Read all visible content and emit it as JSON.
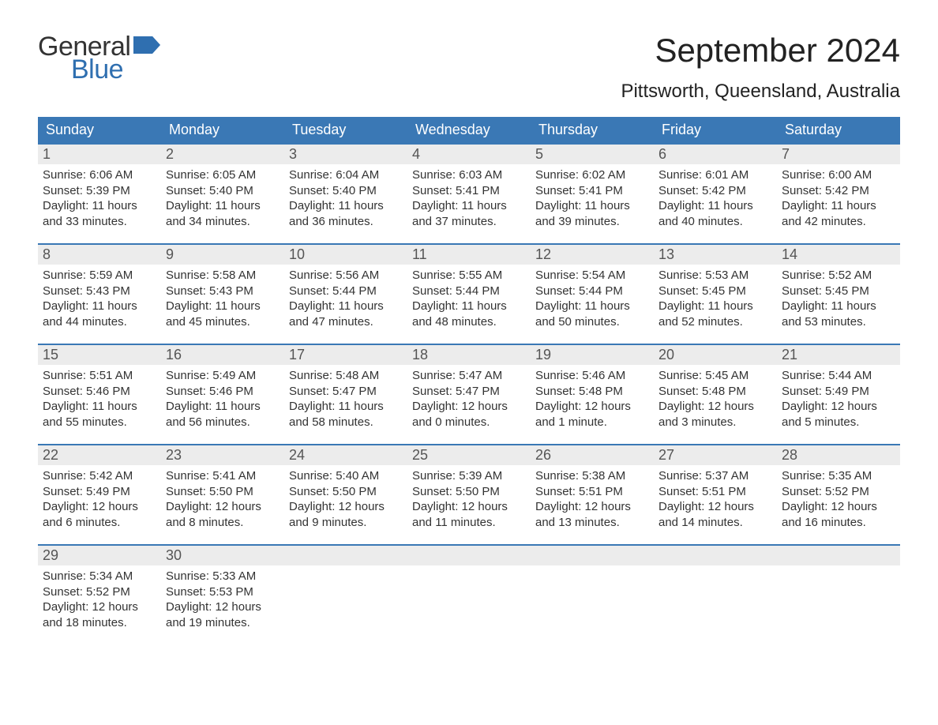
{
  "brand": {
    "word1": "General",
    "word2": "Blue",
    "flag_color": "#2f6fb0",
    "text_color_dark": "#333333",
    "text_color_blue": "#2f6fb0"
  },
  "title": "September 2024",
  "location": "Pittsworth, Queensland, Australia",
  "colors": {
    "header_bg": "#3a78b5",
    "header_text": "#ffffff",
    "week_border": "#3a78b5",
    "daynum_bg": "#ececec",
    "daynum_text": "#555555",
    "body_text": "#333333",
    "page_bg": "#ffffff"
  },
  "typography": {
    "title_fontsize": 42,
    "location_fontsize": 24,
    "dow_fontsize": 18,
    "daynum_fontsize": 18,
    "body_fontsize": 15
  },
  "days_of_week": [
    "Sunday",
    "Monday",
    "Tuesday",
    "Wednesday",
    "Thursday",
    "Friday",
    "Saturday"
  ],
  "weeks": [
    [
      {
        "num": "1",
        "sunrise": "Sunrise: 6:06 AM",
        "sunset": "Sunset: 5:39 PM",
        "daylight": "Daylight: 11 hours and 33 minutes."
      },
      {
        "num": "2",
        "sunrise": "Sunrise: 6:05 AM",
        "sunset": "Sunset: 5:40 PM",
        "daylight": "Daylight: 11 hours and 34 minutes."
      },
      {
        "num": "3",
        "sunrise": "Sunrise: 6:04 AM",
        "sunset": "Sunset: 5:40 PM",
        "daylight": "Daylight: 11 hours and 36 minutes."
      },
      {
        "num": "4",
        "sunrise": "Sunrise: 6:03 AM",
        "sunset": "Sunset: 5:41 PM",
        "daylight": "Daylight: 11 hours and 37 minutes."
      },
      {
        "num": "5",
        "sunrise": "Sunrise: 6:02 AM",
        "sunset": "Sunset: 5:41 PM",
        "daylight": "Daylight: 11 hours and 39 minutes."
      },
      {
        "num": "6",
        "sunrise": "Sunrise: 6:01 AM",
        "sunset": "Sunset: 5:42 PM",
        "daylight": "Daylight: 11 hours and 40 minutes."
      },
      {
        "num": "7",
        "sunrise": "Sunrise: 6:00 AM",
        "sunset": "Sunset: 5:42 PM",
        "daylight": "Daylight: 11 hours and 42 minutes."
      }
    ],
    [
      {
        "num": "8",
        "sunrise": "Sunrise: 5:59 AM",
        "sunset": "Sunset: 5:43 PM",
        "daylight": "Daylight: 11 hours and 44 minutes."
      },
      {
        "num": "9",
        "sunrise": "Sunrise: 5:58 AM",
        "sunset": "Sunset: 5:43 PM",
        "daylight": "Daylight: 11 hours and 45 minutes."
      },
      {
        "num": "10",
        "sunrise": "Sunrise: 5:56 AM",
        "sunset": "Sunset: 5:44 PM",
        "daylight": "Daylight: 11 hours and 47 minutes."
      },
      {
        "num": "11",
        "sunrise": "Sunrise: 5:55 AM",
        "sunset": "Sunset: 5:44 PM",
        "daylight": "Daylight: 11 hours and 48 minutes."
      },
      {
        "num": "12",
        "sunrise": "Sunrise: 5:54 AM",
        "sunset": "Sunset: 5:44 PM",
        "daylight": "Daylight: 11 hours and 50 minutes."
      },
      {
        "num": "13",
        "sunrise": "Sunrise: 5:53 AM",
        "sunset": "Sunset: 5:45 PM",
        "daylight": "Daylight: 11 hours and 52 minutes."
      },
      {
        "num": "14",
        "sunrise": "Sunrise: 5:52 AM",
        "sunset": "Sunset: 5:45 PM",
        "daylight": "Daylight: 11 hours and 53 minutes."
      }
    ],
    [
      {
        "num": "15",
        "sunrise": "Sunrise: 5:51 AM",
        "sunset": "Sunset: 5:46 PM",
        "daylight": "Daylight: 11 hours and 55 minutes."
      },
      {
        "num": "16",
        "sunrise": "Sunrise: 5:49 AM",
        "sunset": "Sunset: 5:46 PM",
        "daylight": "Daylight: 11 hours and 56 minutes."
      },
      {
        "num": "17",
        "sunrise": "Sunrise: 5:48 AM",
        "sunset": "Sunset: 5:47 PM",
        "daylight": "Daylight: 11 hours and 58 minutes."
      },
      {
        "num": "18",
        "sunrise": "Sunrise: 5:47 AM",
        "sunset": "Sunset: 5:47 PM",
        "daylight": "Daylight: 12 hours and 0 minutes."
      },
      {
        "num": "19",
        "sunrise": "Sunrise: 5:46 AM",
        "sunset": "Sunset: 5:48 PM",
        "daylight": "Daylight: 12 hours and 1 minute."
      },
      {
        "num": "20",
        "sunrise": "Sunrise: 5:45 AM",
        "sunset": "Sunset: 5:48 PM",
        "daylight": "Daylight: 12 hours and 3 minutes."
      },
      {
        "num": "21",
        "sunrise": "Sunrise: 5:44 AM",
        "sunset": "Sunset: 5:49 PM",
        "daylight": "Daylight: 12 hours and 5 minutes."
      }
    ],
    [
      {
        "num": "22",
        "sunrise": "Sunrise: 5:42 AM",
        "sunset": "Sunset: 5:49 PM",
        "daylight": "Daylight: 12 hours and 6 minutes."
      },
      {
        "num": "23",
        "sunrise": "Sunrise: 5:41 AM",
        "sunset": "Sunset: 5:50 PM",
        "daylight": "Daylight: 12 hours and 8 minutes."
      },
      {
        "num": "24",
        "sunrise": "Sunrise: 5:40 AM",
        "sunset": "Sunset: 5:50 PM",
        "daylight": "Daylight: 12 hours and 9 minutes."
      },
      {
        "num": "25",
        "sunrise": "Sunrise: 5:39 AM",
        "sunset": "Sunset: 5:50 PM",
        "daylight": "Daylight: 12 hours and 11 minutes."
      },
      {
        "num": "26",
        "sunrise": "Sunrise: 5:38 AM",
        "sunset": "Sunset: 5:51 PM",
        "daylight": "Daylight: 12 hours and 13 minutes."
      },
      {
        "num": "27",
        "sunrise": "Sunrise: 5:37 AM",
        "sunset": "Sunset: 5:51 PM",
        "daylight": "Daylight: 12 hours and 14 minutes."
      },
      {
        "num": "28",
        "sunrise": "Sunrise: 5:35 AM",
        "sunset": "Sunset: 5:52 PM",
        "daylight": "Daylight: 12 hours and 16 minutes."
      }
    ],
    [
      {
        "num": "29",
        "sunrise": "Sunrise: 5:34 AM",
        "sunset": "Sunset: 5:52 PM",
        "daylight": "Daylight: 12 hours and 18 minutes."
      },
      {
        "num": "30",
        "sunrise": "Sunrise: 5:33 AM",
        "sunset": "Sunset: 5:53 PM",
        "daylight": "Daylight: 12 hours and 19 minutes."
      },
      {
        "empty": true
      },
      {
        "empty": true
      },
      {
        "empty": true
      },
      {
        "empty": true
      },
      {
        "empty": true
      }
    ]
  ]
}
